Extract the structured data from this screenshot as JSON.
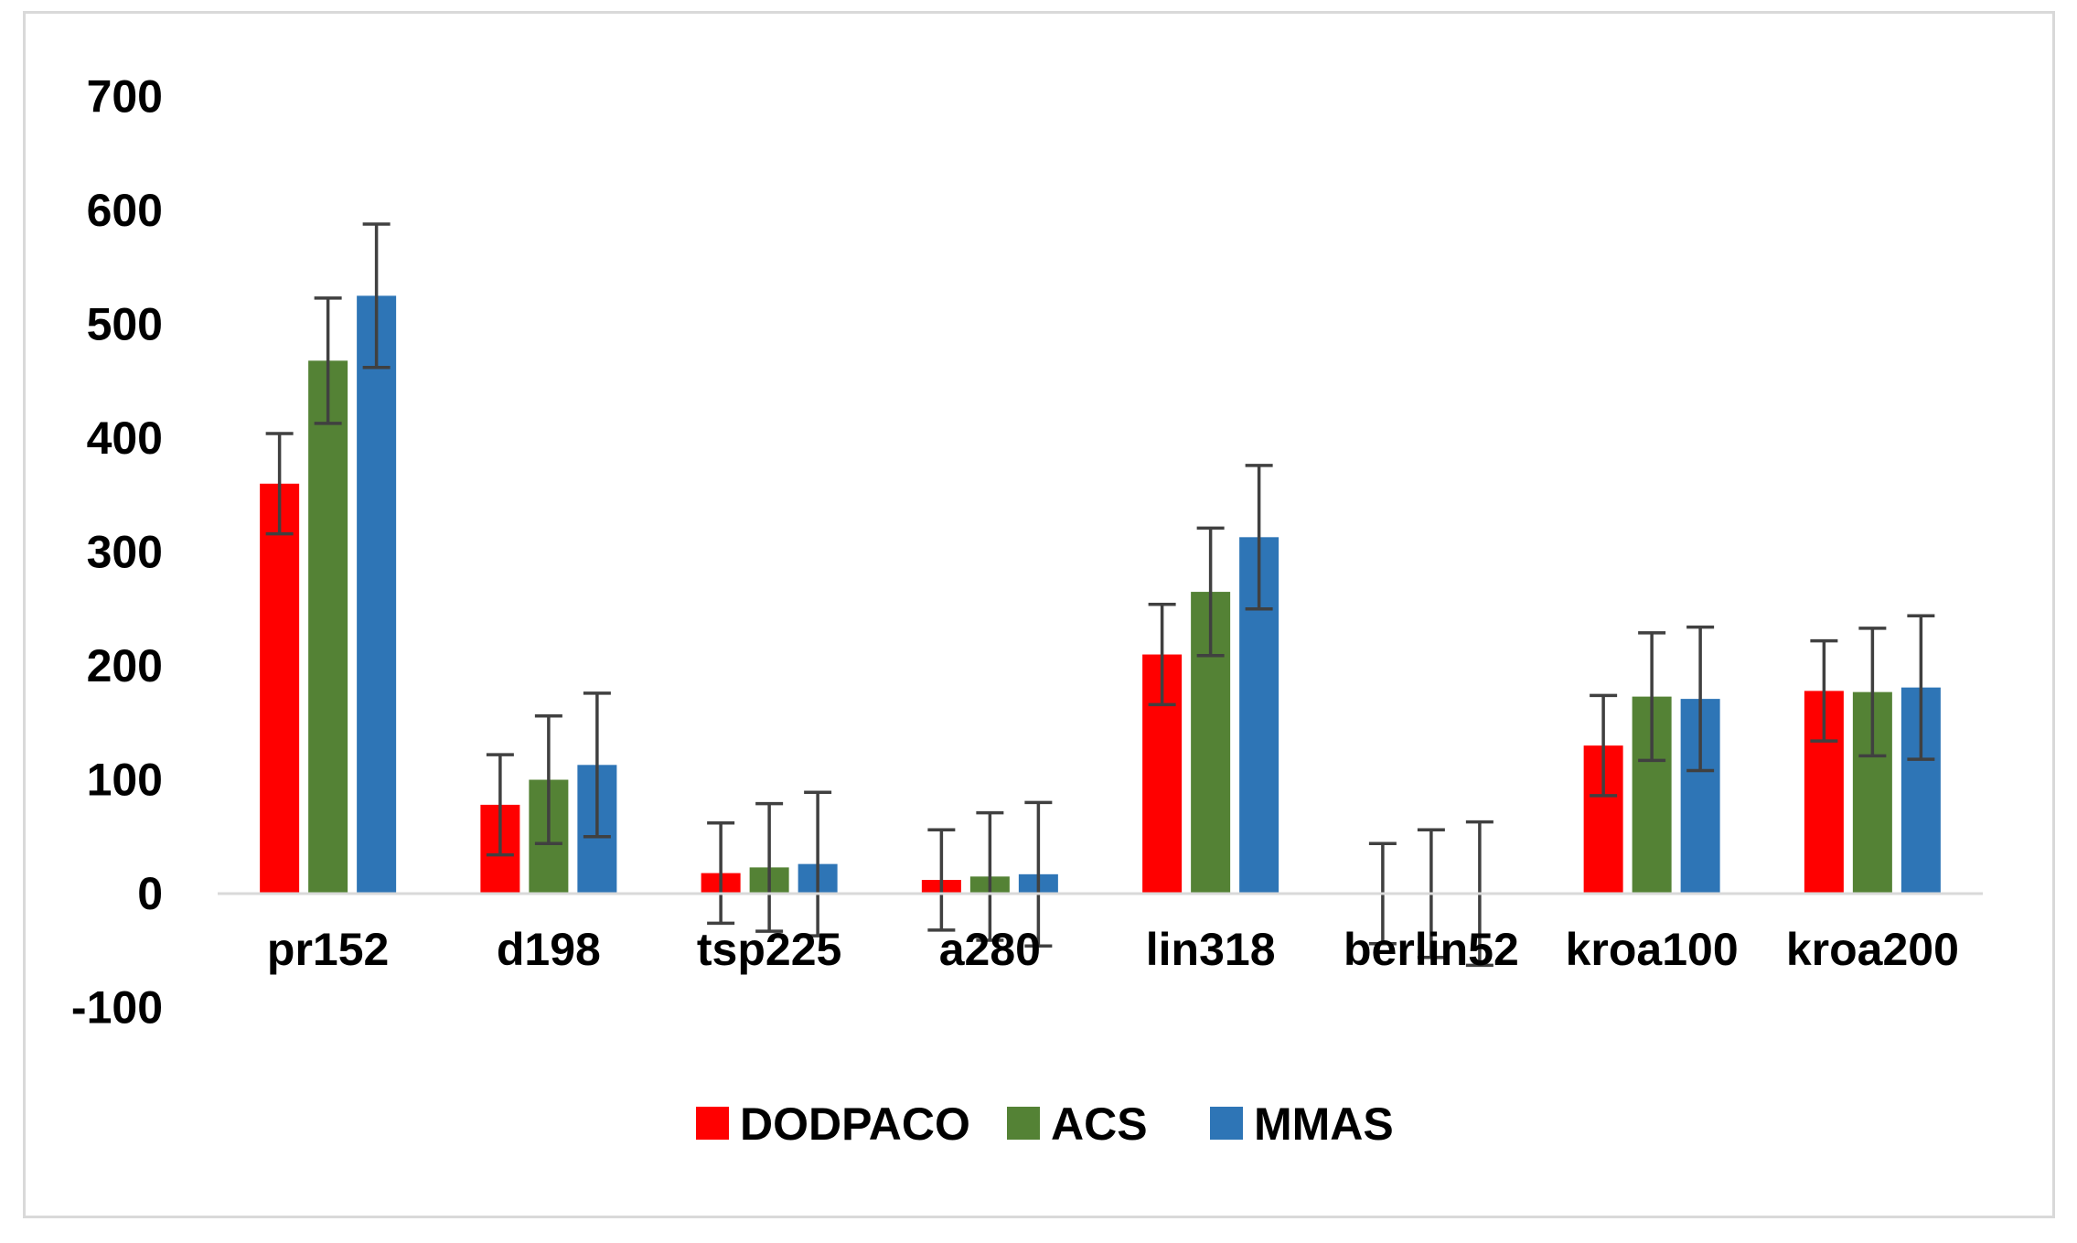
{
  "chart_data": {
    "type": "bar",
    "title": "",
    "xlabel": "",
    "ylabel": "",
    "ylim": [
      -100,
      700
    ],
    "yticks": [
      -100,
      0,
      100,
      200,
      300,
      400,
      500,
      600,
      700
    ],
    "grid": false,
    "legend_position": "bottom",
    "categories": [
      "pr152",
      "d198",
      "tsp225",
      "a280",
      "lin318",
      "berlin52",
      "kroa100",
      "kroa200"
    ],
    "series": [
      {
        "name": "DODPACO",
        "color": "#ff0000",
        "values": [
          360,
          78,
          18,
          12,
          210,
          0,
          130,
          178
        ],
        "errors": [
          44,
          44,
          44,
          44,
          44,
          44,
          44,
          44
        ]
      },
      {
        "name": "ACS",
        "color": "#548235",
        "values": [
          468,
          100,
          23,
          15,
          265,
          0,
          173,
          177
        ],
        "errors": [
          55,
          56,
          56,
          56,
          56,
          56,
          56,
          56
        ]
      },
      {
        "name": "MMAS",
        "color": "#2e75b6",
        "values": [
          525,
          113,
          26,
          17,
          313,
          0,
          171,
          181
        ],
        "errors": [
          63,
          63,
          63,
          63,
          63,
          63,
          63,
          63
        ]
      }
    ]
  }
}
